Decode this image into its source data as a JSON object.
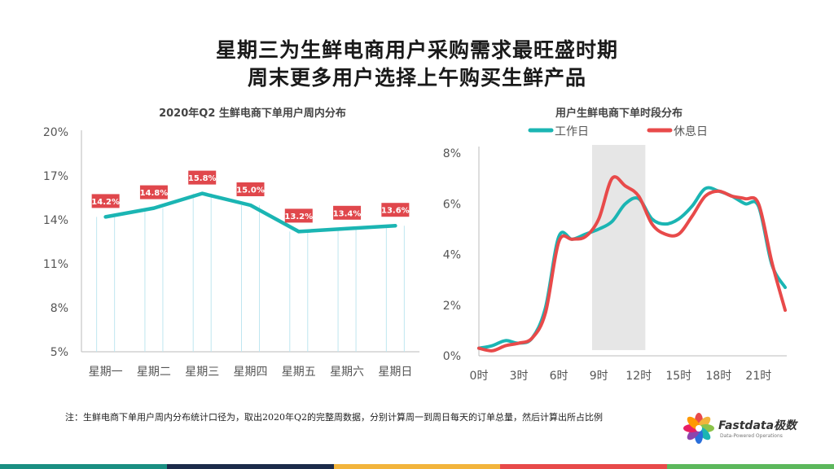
{
  "header": {
    "title_line1": "星期三为生鲜电商用户采购需求最旺盛时期",
    "title_line2": "周末更多用户选择上午购买生鲜产品"
  },
  "chart_data": [
    {
      "type": "line",
      "title": "2020年Q2 生鲜电商下单用户周内分布",
      "categories": [
        "星期一",
        "星期二",
        "星期三",
        "星期四",
        "星期五",
        "星期六",
        "星期日"
      ],
      "series": [
        {
          "values": [
            14.2,
            14.8,
            15.8,
            15.0,
            13.2,
            13.4,
            13.6
          ],
          "color": "#1bb5b3"
        }
      ],
      "data_labels": [
        "14.2%",
        "14.8%",
        "15.8%",
        "15.0%",
        "13.2%",
        "13.4%",
        "13.6%"
      ],
      "y_ticks": [
        "20%",
        "17%",
        "14%",
        "11%",
        "8%",
        "5%"
      ],
      "ylim": [
        5,
        20
      ],
      "grid": false,
      "data_label_color": "#e0474c"
    },
    {
      "type": "line",
      "title": "用户生鲜电商下单时段分布",
      "x_ticks": [
        "0时",
        "3时",
        "6时",
        "9时",
        "12时",
        "15时",
        "18时",
        "21时"
      ],
      "y_ticks": [
        "8%",
        "6%",
        "4%",
        "2%",
        "0%"
      ],
      "ylim": [
        0,
        8
      ],
      "highlight_band": [
        8.5,
        12.5
      ],
      "legend_position": "top",
      "series": [
        {
          "name": "工作日",
          "color": "#1bb5b3",
          "x": [
            0,
            1,
            2,
            3,
            4,
            5,
            6,
            7,
            8,
            9,
            10,
            11,
            12,
            13,
            14,
            15,
            16,
            17,
            18,
            19,
            20,
            21,
            22,
            23
          ],
          "values": [
            0.3,
            0.4,
            0.6,
            0.5,
            0.7,
            1.9,
            4.7,
            4.6,
            4.8,
            5.0,
            5.3,
            6.0,
            6.2,
            5.4,
            5.2,
            5.4,
            5.9,
            6.6,
            6.5,
            6.3,
            6.0,
            5.9,
            3.6,
            2.7
          ]
        },
        {
          "name": "休息日",
          "color": "#e84a4a",
          "x": [
            0,
            1,
            2,
            3,
            4,
            5,
            6,
            7,
            8,
            9,
            10,
            11,
            12,
            13,
            14,
            15,
            16,
            17,
            18,
            19,
            20,
            21,
            22,
            23
          ],
          "values": [
            0.3,
            0.2,
            0.4,
            0.5,
            0.7,
            1.7,
            4.5,
            4.6,
            4.7,
            5.4,
            7.0,
            6.7,
            6.3,
            5.2,
            4.8,
            4.8,
            5.5,
            6.3,
            6.5,
            6.3,
            6.2,
            6.0,
            3.7,
            1.8
          ]
        }
      ]
    }
  ],
  "footnote": "注：生鲜电商下单用户周内分布统计口径为，取出2020年Q2的完整周数据，分别计算周一到周日每天的订单总量，然后计算出所占比例",
  "logo": {
    "name": "Fastdata极数",
    "tagline": "Data-Powered Operations"
  },
  "colors": {
    "bottom_bar": [
      "#1a8f82",
      "#1c2b4a",
      "#f2b43c",
      "#e84a4a",
      "#5cb85c"
    ]
  }
}
